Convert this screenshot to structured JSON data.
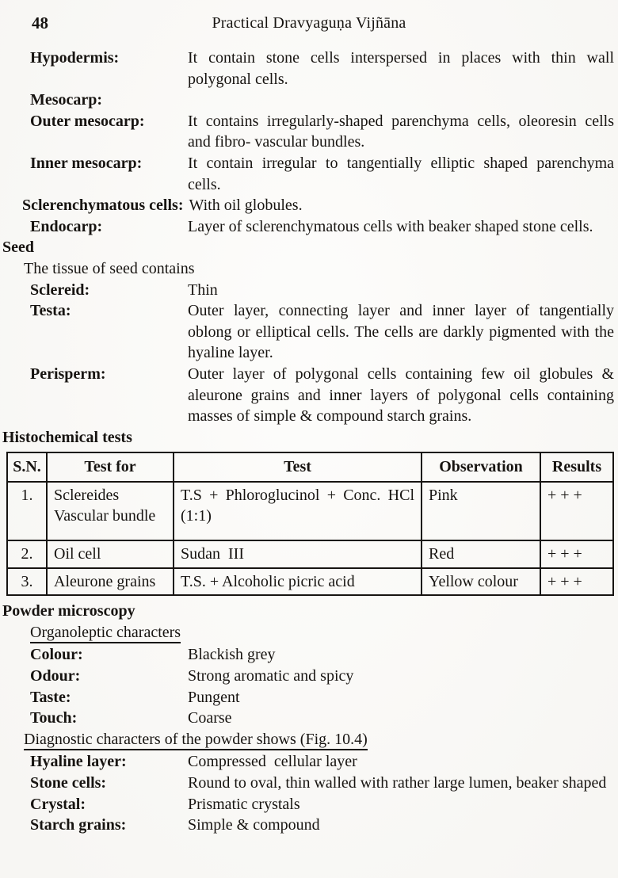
{
  "page": {
    "number": "48",
    "title": "Practical Dravyaguṇa Vijñāna"
  },
  "pericarp_entries": [
    {
      "label": "Hypodermis:",
      "text": "It contain stone cells interspersed in places with thin wall polygonal cells."
    },
    {
      "label": "Mesocarp:",
      "text": ""
    },
    {
      "label": "Outer mesocarp:",
      "text": "It contains irregularly-shaped parenchyma cells, oleoresin cells and fibro- vascular bundles."
    },
    {
      "label": "Inner mesocarp:",
      "text": "It contain irregular to tangentially elliptic shaped parenchyma cells."
    },
    {
      "label": "Sclerenchymatous cells:",
      "text": "With oil globules."
    },
    {
      "label": "Endocarp:",
      "text": "Layer of sclerenchymatous cells with beaker shaped stone cells."
    }
  ],
  "seed": {
    "heading": "Seed",
    "intro": "The tissue of seed contains",
    "entries": [
      {
        "label": "Sclereid:",
        "text": "Thin"
      },
      {
        "label": "Testa:",
        "text": "Outer layer, connecting layer and inner layer of tangentially oblong or elliptical cells. The cells are darkly pigmented with the hyaline layer."
      },
      {
        "label": "Perisperm:",
        "text": "Outer layer of polygonal cells containing few oil globules & aleurone grains and inner layers of polygonal cells containing masses of simple & compound starch grains."
      }
    ]
  },
  "histochemical": {
    "heading": "Histochemical tests",
    "table": {
      "headers": [
        "S.N.",
        "Test for",
        "Test",
        "Observation",
        "Results"
      ],
      "rows": [
        {
          "sn": "1.",
          "test_for": "Sclereides\nVascular bundle",
          "test": "T.S + Phloroglucinol + Conc. HCl (1:1)",
          "observation": "Pink",
          "results": "+ + +"
        },
        {
          "sn": "2.",
          "test_for": "Oil cell",
          "test": "Sudan  III",
          "observation": "Red",
          "results": "+ + +"
        },
        {
          "sn": "3.",
          "test_for": "Aleurone grains",
          "test": "T.S. + Alcoholic picric acid",
          "observation": "Yellow colour",
          "results": "+ + +"
        }
      ]
    }
  },
  "powder": {
    "heading": "Powder microscopy",
    "organoleptic_heading": "Organoleptic characters",
    "organoleptic": [
      {
        "label": "Colour:",
        "text": "Blackish grey"
      },
      {
        "label": "Odour:",
        "text": "Strong aromatic and spicy"
      },
      {
        "label": "Taste:",
        "text": "Pungent"
      },
      {
        "label": "Touch:",
        "text": "Coarse"
      }
    ],
    "diagnostic_heading": "Diagnostic characters of the powder shows (Fig. 10.4)",
    "diagnostic": [
      {
        "label": "Hyaline layer:",
        "text": "Compressed  cellular layer"
      },
      {
        "label": "Stone cells:",
        "text": "Round to oval, thin walled with rather large lumen, beaker shaped"
      },
      {
        "label": "Crystal:",
        "text": "Prismatic crystals"
      },
      {
        "label": "Starch grains:",
        "text": "Simple & compound"
      }
    ]
  },
  "colors": {
    "ink": "#171411",
    "paper": "#fbfaf7"
  }
}
